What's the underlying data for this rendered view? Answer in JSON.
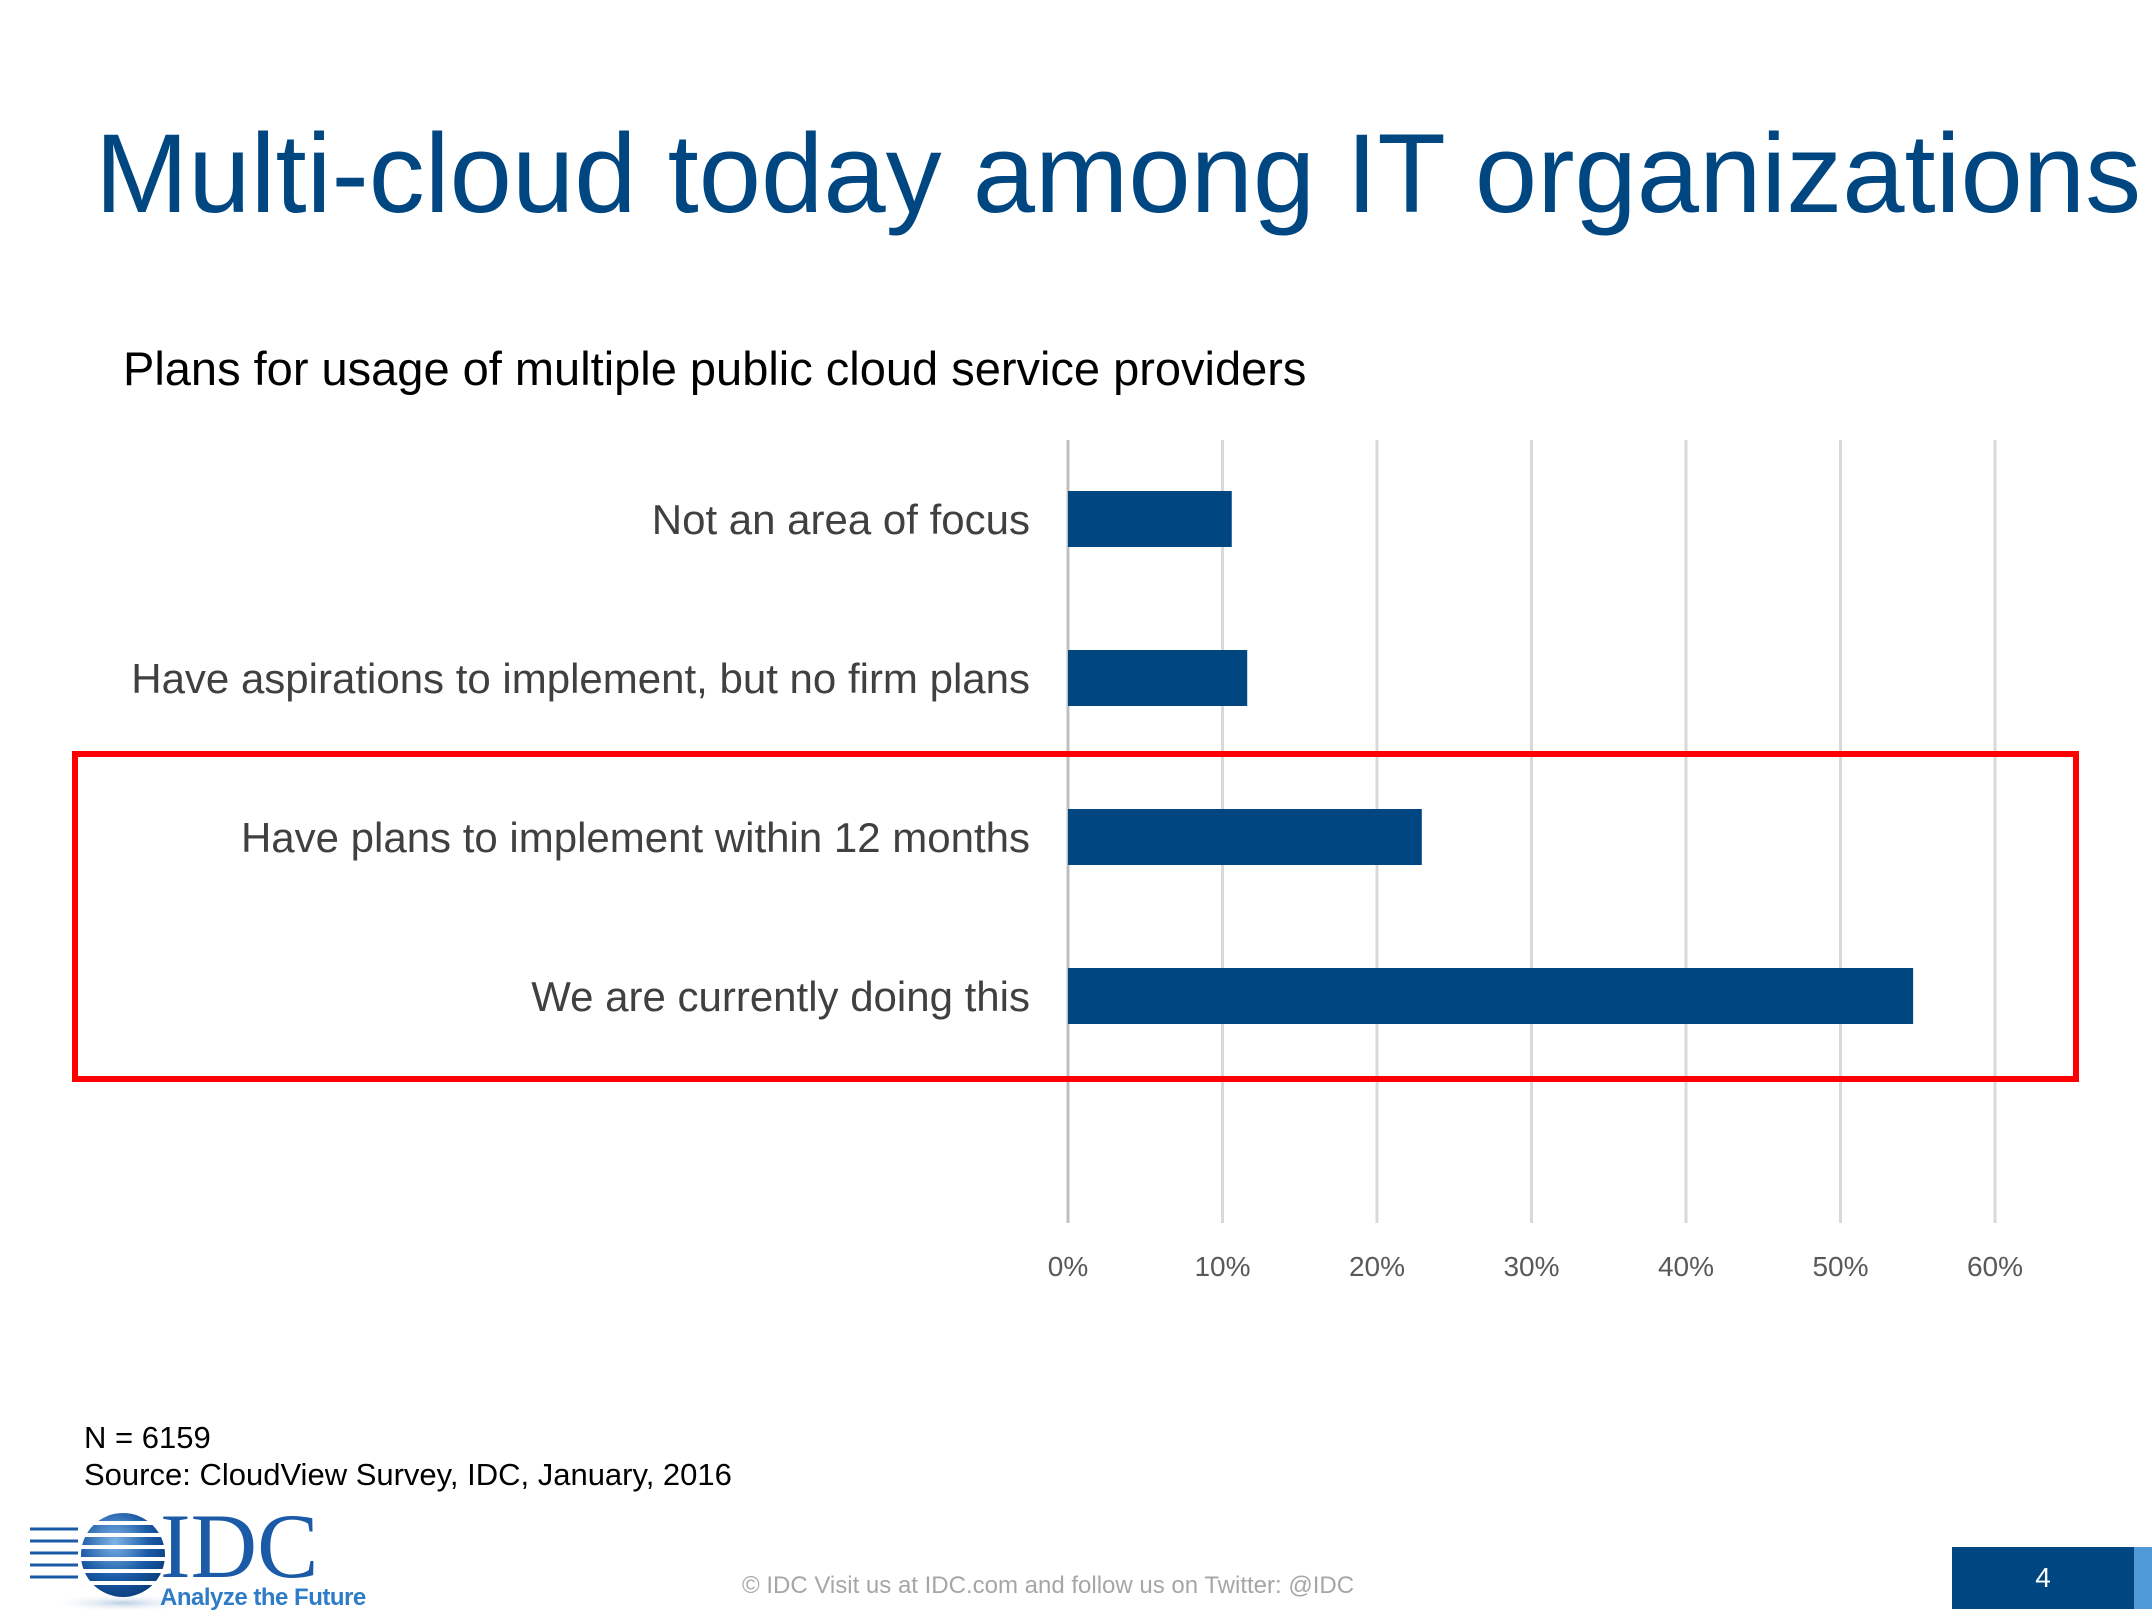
{
  "slide": {
    "title": "Multi-cloud today among IT organizations",
    "subtitle": "Plans for usage of multiple public cloud service providers",
    "footnote_n": "N = 6159",
    "footnote_source": "Source: CloudView Survey, IDC, January, 2016",
    "footer": "© IDC   Visit us at IDC.com and follow us on Twitter: @IDC",
    "page_number": "4",
    "logo_text": "IDC",
    "logo_tagline": "Analyze the Future",
    "colors": {
      "title": "#004782",
      "bar": "#004782",
      "highlight": "#ff0000",
      "grid": "#d9d9d9"
    }
  },
  "chart_data": {
    "type": "bar",
    "orientation": "horizontal",
    "title": "Plans for usage of multiple public cloud service providers",
    "categories": [
      "Not an area of focus",
      "Have aspirations to implement, but no firm plans",
      "Have plans to implement within 12 months",
      "We are currently doing this"
    ],
    "values": [
      10.6,
      11.6,
      22.9,
      54.7
    ],
    "unit": "%",
    "xlim": [
      0,
      60
    ],
    "ticks": [
      "0%",
      "10%",
      "20%",
      "30%",
      "40%",
      "50%",
      "60%"
    ],
    "tick_values": [
      0,
      10,
      20,
      30,
      40,
      50,
      60
    ],
    "grid": true,
    "highlighted_categories": [
      "Have plans to implement within 12 months",
      "We are currently doing this"
    ]
  }
}
